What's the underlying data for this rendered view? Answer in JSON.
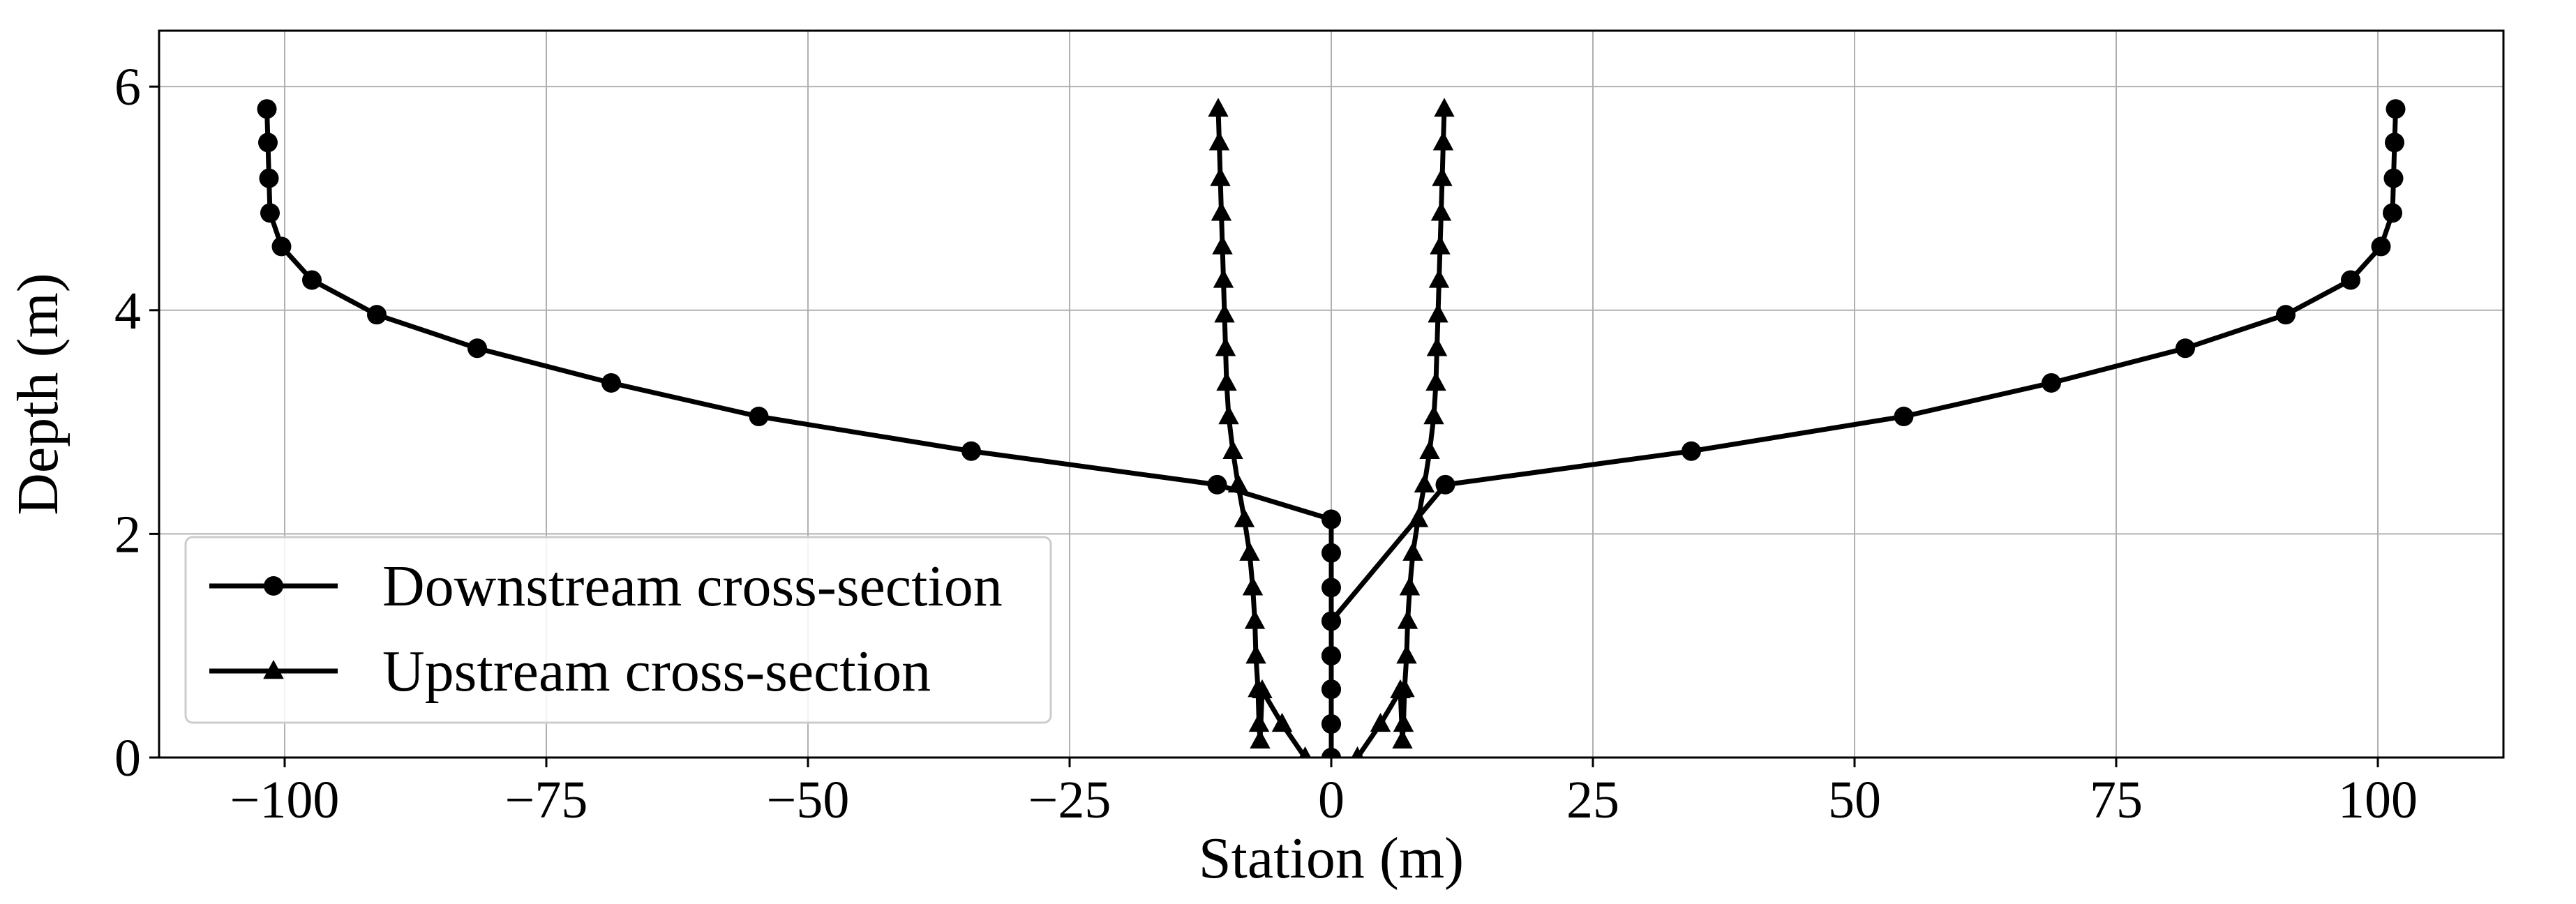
{
  "chart_data": {
    "type": "line",
    "title": "",
    "xlabel": "Station (m)",
    "ylabel": "Depth (m)",
    "xlim": [
      -112,
      112
    ],
    "ylim": [
      0,
      6.5
    ],
    "xticks": [
      -100,
      -75,
      -50,
      -25,
      0,
      25,
      50,
      75,
      100
    ],
    "xtick_labels": [
      "−100",
      "−75",
      "−50",
      "−25",
      "0",
      "25",
      "50",
      "75",
      "100"
    ],
    "yticks": [
      0,
      2,
      4,
      6
    ],
    "ytick_labels": [
      "0",
      "2",
      "4",
      "6"
    ],
    "grid": true,
    "legend_position": "lower-left",
    "series": [
      {
        "name": "Downstream cross-section",
        "marker": "circle",
        "color": "#000000",
        "x": [
          -101.7,
          -101.6,
          -101.5,
          -101.4,
          -100.3,
          -97.4,
          -91.2,
          -81.6,
          -68.8,
          -54.7,
          -34.4,
          -10.9,
          0,
          0,
          0,
          0,
          0,
          0,
          0,
          0,
          0,
          0,
          0,
          0,
          0,
          10.9,
          34.4,
          54.7,
          68.8,
          81.6,
          91.2,
          97.4,
          100.3,
          101.4,
          101.5,
          101.6,
          101.7
        ],
        "y": [
          5.8,
          5.5,
          5.18,
          4.87,
          4.57,
          4.27,
          3.96,
          3.66,
          3.35,
          3.05,
          2.74,
          2.44,
          2.13,
          2.13,
          1.83,
          1.52,
          1.22,
          0.91,
          0.61,
          0.3,
          0,
          0.3,
          0.61,
          0.91,
          1.22,
          2.44,
          2.74,
          3.05,
          3.35,
          3.66,
          3.96,
          4.27,
          4.57,
          4.87,
          5.18,
          5.5,
          5.8
        ]
      },
      {
        "name": "Upstream cross-section",
        "marker": "triangle",
        "color": "#000000",
        "x": [
          -10.8,
          -10.7,
          -10.6,
          -10.5,
          -10.4,
          -10.3,
          -10.2,
          -10.1,
          -10.0,
          -9.8,
          -9.4,
          -8.9,
          -8.3,
          -7.8,
          -7.5,
          -7.3,
          -7.2,
          -7.0,
          -6.9,
          -6.8,
          -6.6,
          -4.7,
          -2.5,
          0,
          2.5,
          4.7,
          6.6,
          6.8,
          6.9,
          7.0,
          7.2,
          7.3,
          7.5,
          7.8,
          8.3,
          8.9,
          9.4,
          9.8,
          10.0,
          10.1,
          10.2,
          10.3,
          10.4,
          10.5,
          10.6,
          10.7,
          10.8
        ],
        "y": [
          5.8,
          5.5,
          5.18,
          4.87,
          4.57,
          4.27,
          3.96,
          3.66,
          3.35,
          3.05,
          2.74,
          2.44,
          2.13,
          1.83,
          1.52,
          1.22,
          0.91,
          0.61,
          0.3,
          0.15,
          0.6,
          0.3,
          0,
          -0.15,
          0,
          0.3,
          0.6,
          0.15,
          0.3,
          0.61,
          0.91,
          1.22,
          1.52,
          1.83,
          2.13,
          2.44,
          2.74,
          3.05,
          3.35,
          3.66,
          3.96,
          4.27,
          4.57,
          4.87,
          5.18,
          5.5,
          5.8
        ]
      }
    ]
  }
}
